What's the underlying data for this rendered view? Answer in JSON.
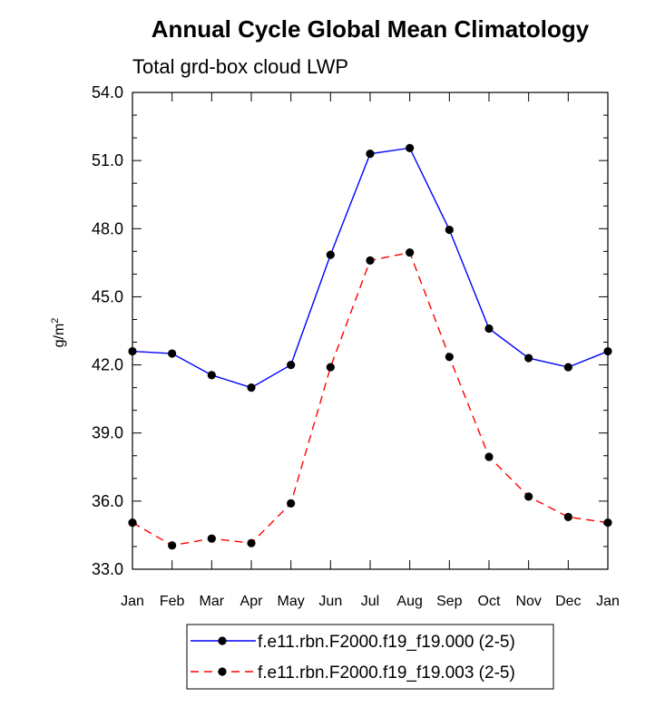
{
  "chart_data": {
    "type": "line",
    "title": "Annual Cycle Global Mean Climatology",
    "subtitle": "Total grd-box cloud LWP",
    "ylabel": "g/m",
    "ylabel_superscript": "2",
    "ylim": [
      33.0,
      54.0
    ],
    "yticks": [
      33.0,
      36.0,
      39.0,
      42.0,
      45.0,
      48.0,
      51.0,
      54.0
    ],
    "ytick_labels": [
      "33.0",
      "36.0",
      "39.0",
      "42.0",
      "45.0",
      "48.0",
      "51.0",
      "54.0"
    ],
    "categories": [
      "Jan",
      "Feb",
      "Mar",
      "Apr",
      "May",
      "Jun",
      "Jul",
      "Aug",
      "Sep",
      "Oct",
      "Nov",
      "Dec",
      "Jan"
    ],
    "legend_position": "bottom-center",
    "series": [
      {
        "name": "f.e11.rbn.F2000.f19_f19.000 (2-5)",
        "color": "#0000ff",
        "dash": "solid",
        "values": [
          42.6,
          42.5,
          41.55,
          41.0,
          42.0,
          46.85,
          51.3,
          51.55,
          47.95,
          43.6,
          42.3,
          41.9,
          42.6
        ]
      },
      {
        "name": "f.e11.rbn.F2000.f19_f19.003 (2-5)",
        "color": "#ff0000",
        "dash": "dashed",
        "values": [
          35.05,
          34.05,
          34.35,
          34.15,
          35.9,
          41.9,
          46.6,
          46.95,
          42.35,
          37.95,
          36.2,
          35.3,
          35.05
        ]
      }
    ]
  }
}
